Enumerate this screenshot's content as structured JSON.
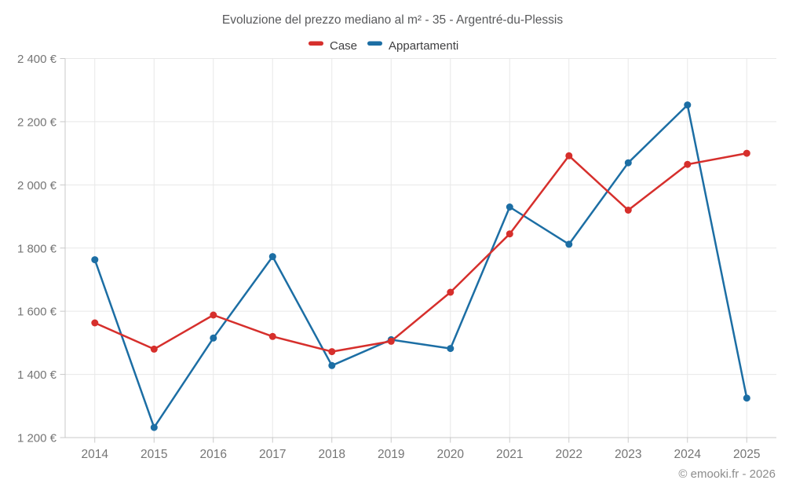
{
  "chart": {
    "title": "Evoluzione del prezzo mediano al m² - 35 - Argentré-du-Plessis",
    "copyright": "© emooki.fr - 2026",
    "colors": {
      "case_red": "#d62f2c",
      "appartamenti_blue": "#1c6ea4",
      "gridline": "#e8e8e8",
      "axis_line": "#c9c9c9",
      "tick_mark": "#c9c9c9",
      "title_text": "#58595b",
      "legend_text": "#3f3f41",
      "axis_text": "#757575",
      "copyright_text": "#8c8c8c",
      "background": "#ffffff"
    }
  },
  "chart_data": {
    "type": "line",
    "title": "Evoluzione del prezzo mediano al m² - 35 - Argentré-du-Plessis",
    "xlabel": "",
    "ylabel": "",
    "categories": [
      "2014",
      "2015",
      "2016",
      "2017",
      "2018",
      "2019",
      "2020",
      "2021",
      "2022",
      "2023",
      "2024",
      "2025"
    ],
    "series": [
      {
        "name": "Case",
        "color": "#d62f2c",
        "values": [
          1563,
          1480,
          1588,
          1520,
          1472,
          1505,
          1660,
          1845,
          2092,
          1920,
          2065,
          2100
        ]
      },
      {
        "name": "Appartamenti",
        "color": "#1c6ea4",
        "values": [
          1763,
          1232,
          1515,
          1773,
          1428,
          1510,
          1482,
          1930,
          1812,
          2070,
          2253,
          1325
        ]
      }
    ],
    "ylim": [
      1200,
      2400
    ],
    "yticks": [
      1200,
      1400,
      1600,
      1800,
      2000,
      2200,
      2400
    ],
    "ytick_labels": [
      "1 200 €",
      "1 400 €",
      "1 600 €",
      "1 800 €",
      "2 000 €",
      "2 200 €",
      "2 400 €"
    ],
    "grid": true,
    "legend_position": "top",
    "marker": "circle",
    "currency": "€"
  }
}
